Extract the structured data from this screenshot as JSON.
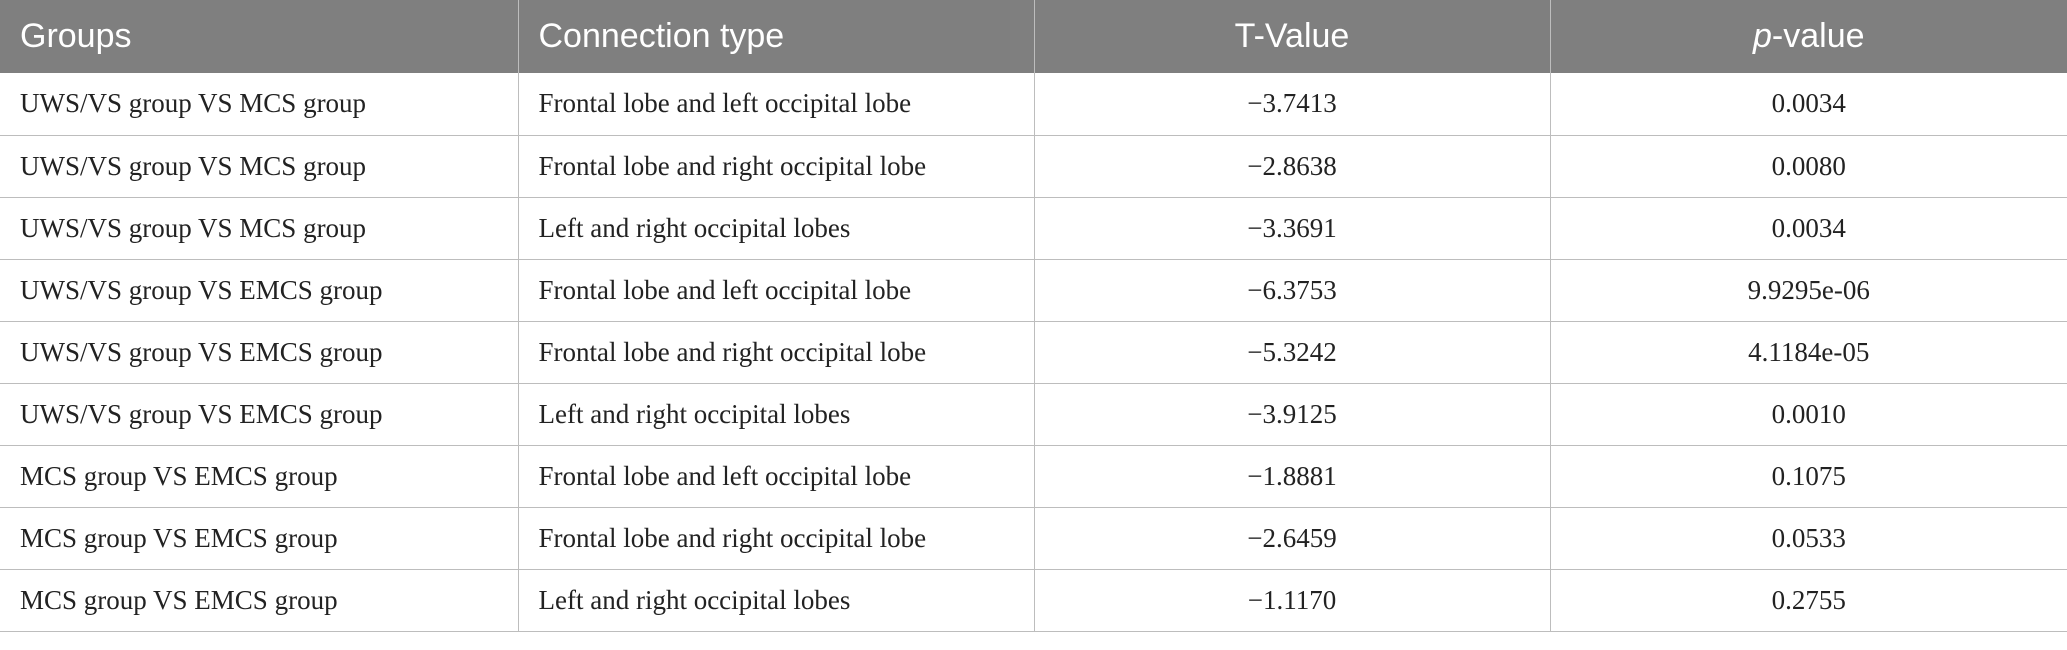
{
  "table": {
    "headers": {
      "groups": "Groups",
      "connection_type": "Connection type",
      "t_value": "T-Value",
      "p_value_prefix": "p",
      "p_value_suffix": "-value"
    },
    "rows": [
      {
        "groups": "UWS/VS group VS MCS group",
        "connection": "Frontal lobe and left occipital lobe",
        "t": "−3.7413",
        "p": "0.0034"
      },
      {
        "groups": "UWS/VS group VS MCS group",
        "connection": "Frontal lobe and right occipital lobe",
        "t": "−2.8638",
        "p": "0.0080"
      },
      {
        "groups": "UWS/VS group VS MCS group",
        "connection": "Left and right occipital lobes",
        "t": "−3.3691",
        "p": "0.0034"
      },
      {
        "groups": "UWS/VS group VS EMCS group",
        "connection": "Frontal lobe and left occipital lobe",
        "t": "−6.3753",
        "p": "9.9295e-06"
      },
      {
        "groups": "UWS/VS group VS EMCS group",
        "connection": "Frontal lobe and right occipital lobe",
        "t": "−5.3242",
        "p": "4.1184e-05"
      },
      {
        "groups": "UWS/VS group VS EMCS group",
        "connection": "Left and right occipital lobes",
        "t": "−3.9125",
        "p": "0.0010"
      },
      {
        "groups": "MCS group VS EMCS group",
        "connection": "Frontal lobe and left occipital lobe",
        "t": "−1.8881",
        "p": "0.1075"
      },
      {
        "groups": "MCS group VS EMCS group",
        "connection": "Frontal lobe and right occipital lobe",
        "t": "−2.6459",
        "p": "0.0533"
      },
      {
        "groups": "MCS group VS EMCS group",
        "connection": "Left and right occipital lobes",
        "t": "−1.1170",
        "p": "0.2755"
      }
    ]
  },
  "colors": {
    "header_bg": "#7f7f7f",
    "header_text": "#ffffff",
    "grid": "#bdbdbd"
  }
}
